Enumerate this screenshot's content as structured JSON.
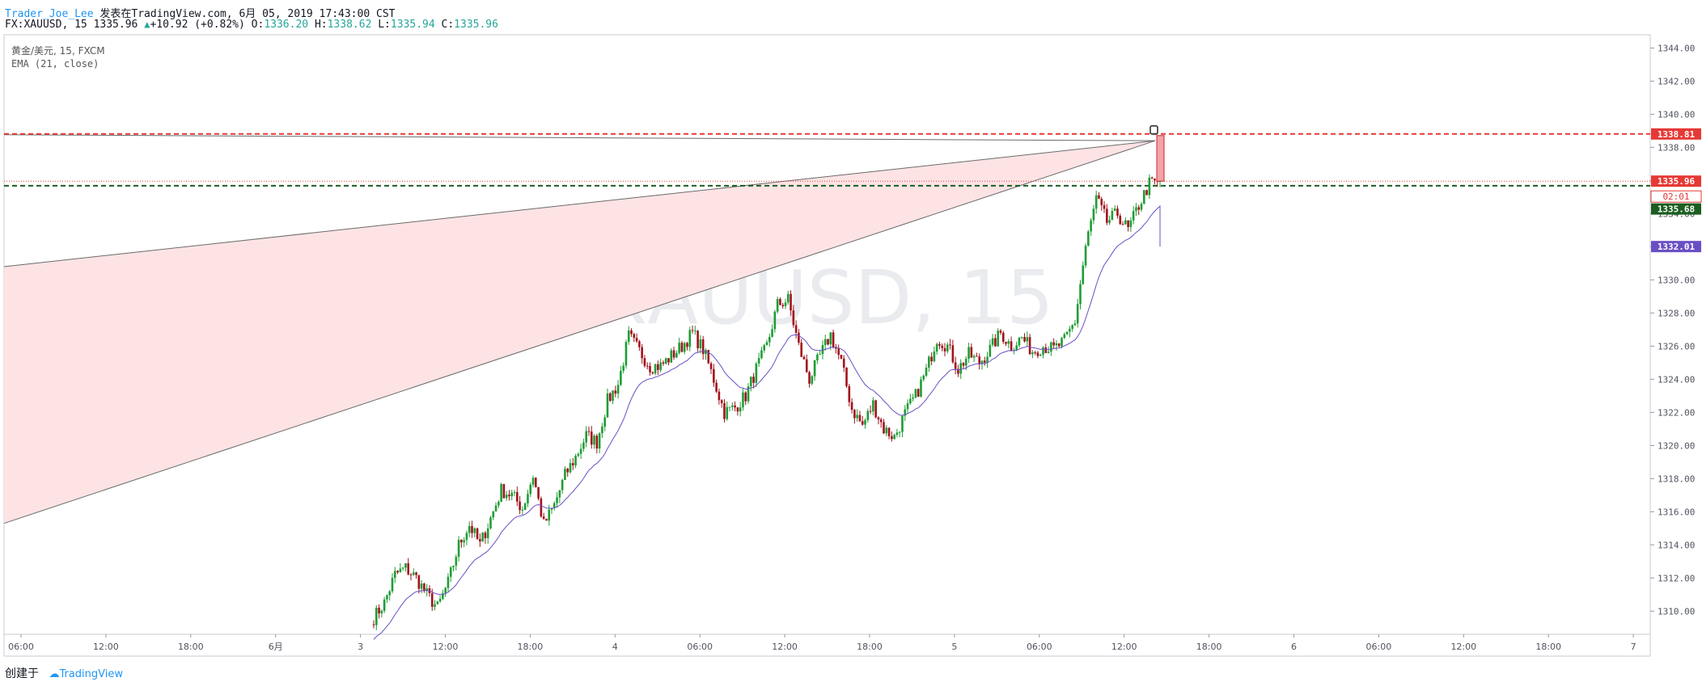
{
  "header": {
    "user": "Trader_Joe_Lee",
    "published": "发表在TradingView.com, 6月 05, 2019 17:43:00 CST",
    "symbol": "FX:XAUUSD, 15",
    "last": "1335.96",
    "change": "+10.92 (+0.82%)",
    "o_label": "O:",
    "o": "1336.20",
    "h_label": "H:",
    "h": "1338.62",
    "l_label": "L:",
    "l": "1335.94",
    "c_label": "C:",
    "c": "1335.96"
  },
  "legend": {
    "instrument": "黄金/美元, 15, FXCM",
    "indicator": "EMA (21, close)"
  },
  "watermark": "XAUUSD, 15",
  "footer": {
    "created_by": "创建于",
    "brand": "TradingView"
  },
  "colors": {
    "up": "#26a69a",
    "candle_up": "#1f9d35",
    "candle_down": "#a1121c",
    "ema": "#6a4fc4",
    "resistance": "#e53935",
    "support": "#1b5e20",
    "wedge_fill": "#fde3e4",
    "accent": "#2196f3"
  },
  "chart_data": {
    "type": "candlestick",
    "timeframe": "15",
    "y_axis": {
      "range": [
        1308.6,
        1344.8
      ],
      "ticks": [
        "1344.00",
        "1342.00",
        "1340.00",
        "1338.00",
        "1336.00",
        "1334.00",
        "1332.00",
        "1330.00",
        "1328.00",
        "1326.00",
        "1324.00",
        "1322.00",
        "1320.00",
        "1318.00",
        "1316.00",
        "1314.00",
        "1312.00",
        "1310.00"
      ]
    },
    "x_axis": {
      "labels": [
        "06:00",
        "12:00",
        "18:00",
        "6月",
        "3",
        "12:00",
        "18:00",
        "4",
        "06:00",
        "12:00",
        "18:00",
        "5",
        "06:00",
        "12:00",
        "18:00",
        "6",
        "06:00",
        "12:00",
        "18:00",
        "7"
      ]
    },
    "price_labels": {
      "resistance": "1338.81",
      "last": "1335.96",
      "countdown": "02:01",
      "support": "1335.68",
      "ema": "1332.01"
    },
    "levels": {
      "resistance": 1338.81,
      "last": 1335.96,
      "support": 1335.68
    },
    "wedge": {
      "apex": 1338.4,
      "upper_left": 1330.8,
      "lower_left": 1315.3
    },
    "ema_value": 1332.01,
    "waypoints": [
      1309.6,
      1310.5,
      1312.2,
      1312.6,
      1312.0,
      1311.0,
      1310.2,
      1311.7,
      1314.0,
      1315.2,
      1314.0,
      1315.6,
      1317.3,
      1317.0,
      1316.2,
      1318.2,
      1315.2,
      1316.4,
      1318.2,
      1319.3,
      1320.6,
      1320.2,
      1322.7,
      1323.7,
      1326.6,
      1325.7,
      1324.8,
      1324.8,
      1325.4,
      1326.0,
      1326.8,
      1325.8,
      1324.0,
      1322.0,
      1322.3,
      1323.0,
      1324.6,
      1326.0,
      1328.5,
      1328.8,
      1326.0,
      1324.0,
      1325.4,
      1326.7,
      1325.0,
      1322.2,
      1321.2,
      1322.5,
      1321.0,
      1320.5,
      1321.9,
      1323.0,
      1324.5,
      1326.5,
      1326.0,
      1324.6,
      1325.5,
      1325.0,
      1325.8,
      1326.8,
      1326.0,
      1326.5,
      1325.7,
      1326.0,
      1325.8,
      1326.3,
      1327.5,
      1332.0,
      1334.9,
      1333.5,
      1334.0,
      1333.0,
      1334.5,
      1335.8,
      1335.96
    ]
  }
}
